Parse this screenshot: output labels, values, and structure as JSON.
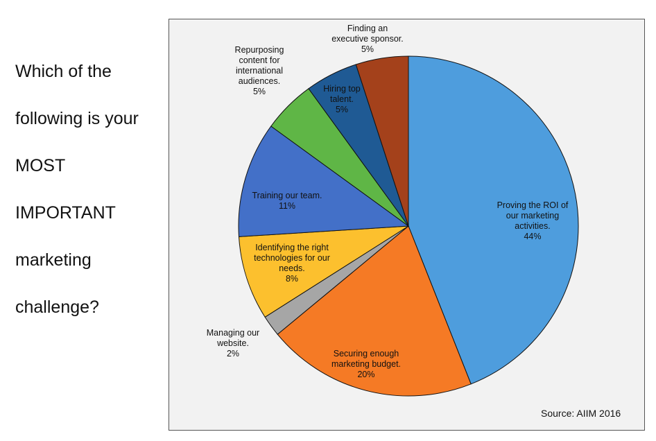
{
  "question": "Which of the following is your MOST IMPORTANT marketing challenge?",
  "question_lines": [
    "Which of the",
    "following is your",
    "MOST",
    "IMPORTANT",
    "marketing",
    "challenge?"
  ],
  "source": "Source: AIIM 2016",
  "chart_data": {
    "type": "pie",
    "title": "",
    "slices": [
      {
        "label_lines": [
          "Proving the ROI of",
          "our marketing",
          "activities."
        ],
        "value": 44,
        "value_label": "44%",
        "color": "#4e9ddd"
      },
      {
        "label_lines": [
          "Securing enough",
          "marketing budget."
        ],
        "value": 20,
        "value_label": "20%",
        "color": "#f57a25"
      },
      {
        "label_lines": [
          "Managing our",
          "website."
        ],
        "value": 2,
        "value_label": "2%",
        "color": "#a6a6a6"
      },
      {
        "label_lines": [
          "Identifying the right",
          "technologies for our",
          "needs."
        ],
        "value": 8,
        "value_label": "8%",
        "color": "#fcc02e"
      },
      {
        "label_lines": [
          "Training our team."
        ],
        "value": 11,
        "value_label": "11%",
        "color": "#4370c8"
      },
      {
        "label_lines": [
          "Repurposing",
          "content for",
          "international",
          "audiences."
        ],
        "value": 5,
        "value_label": "5%",
        "color": "#5fb646"
      },
      {
        "label_lines": [
          "Hiring top",
          "talent."
        ],
        "value": 5,
        "value_label": "5%",
        "color": "#1f5a94"
      },
      {
        "label_lines": [
          "Finding an",
          "executive sponsor."
        ],
        "value": 5,
        "value_label": "5%",
        "color": "#a4411b"
      }
    ]
  }
}
